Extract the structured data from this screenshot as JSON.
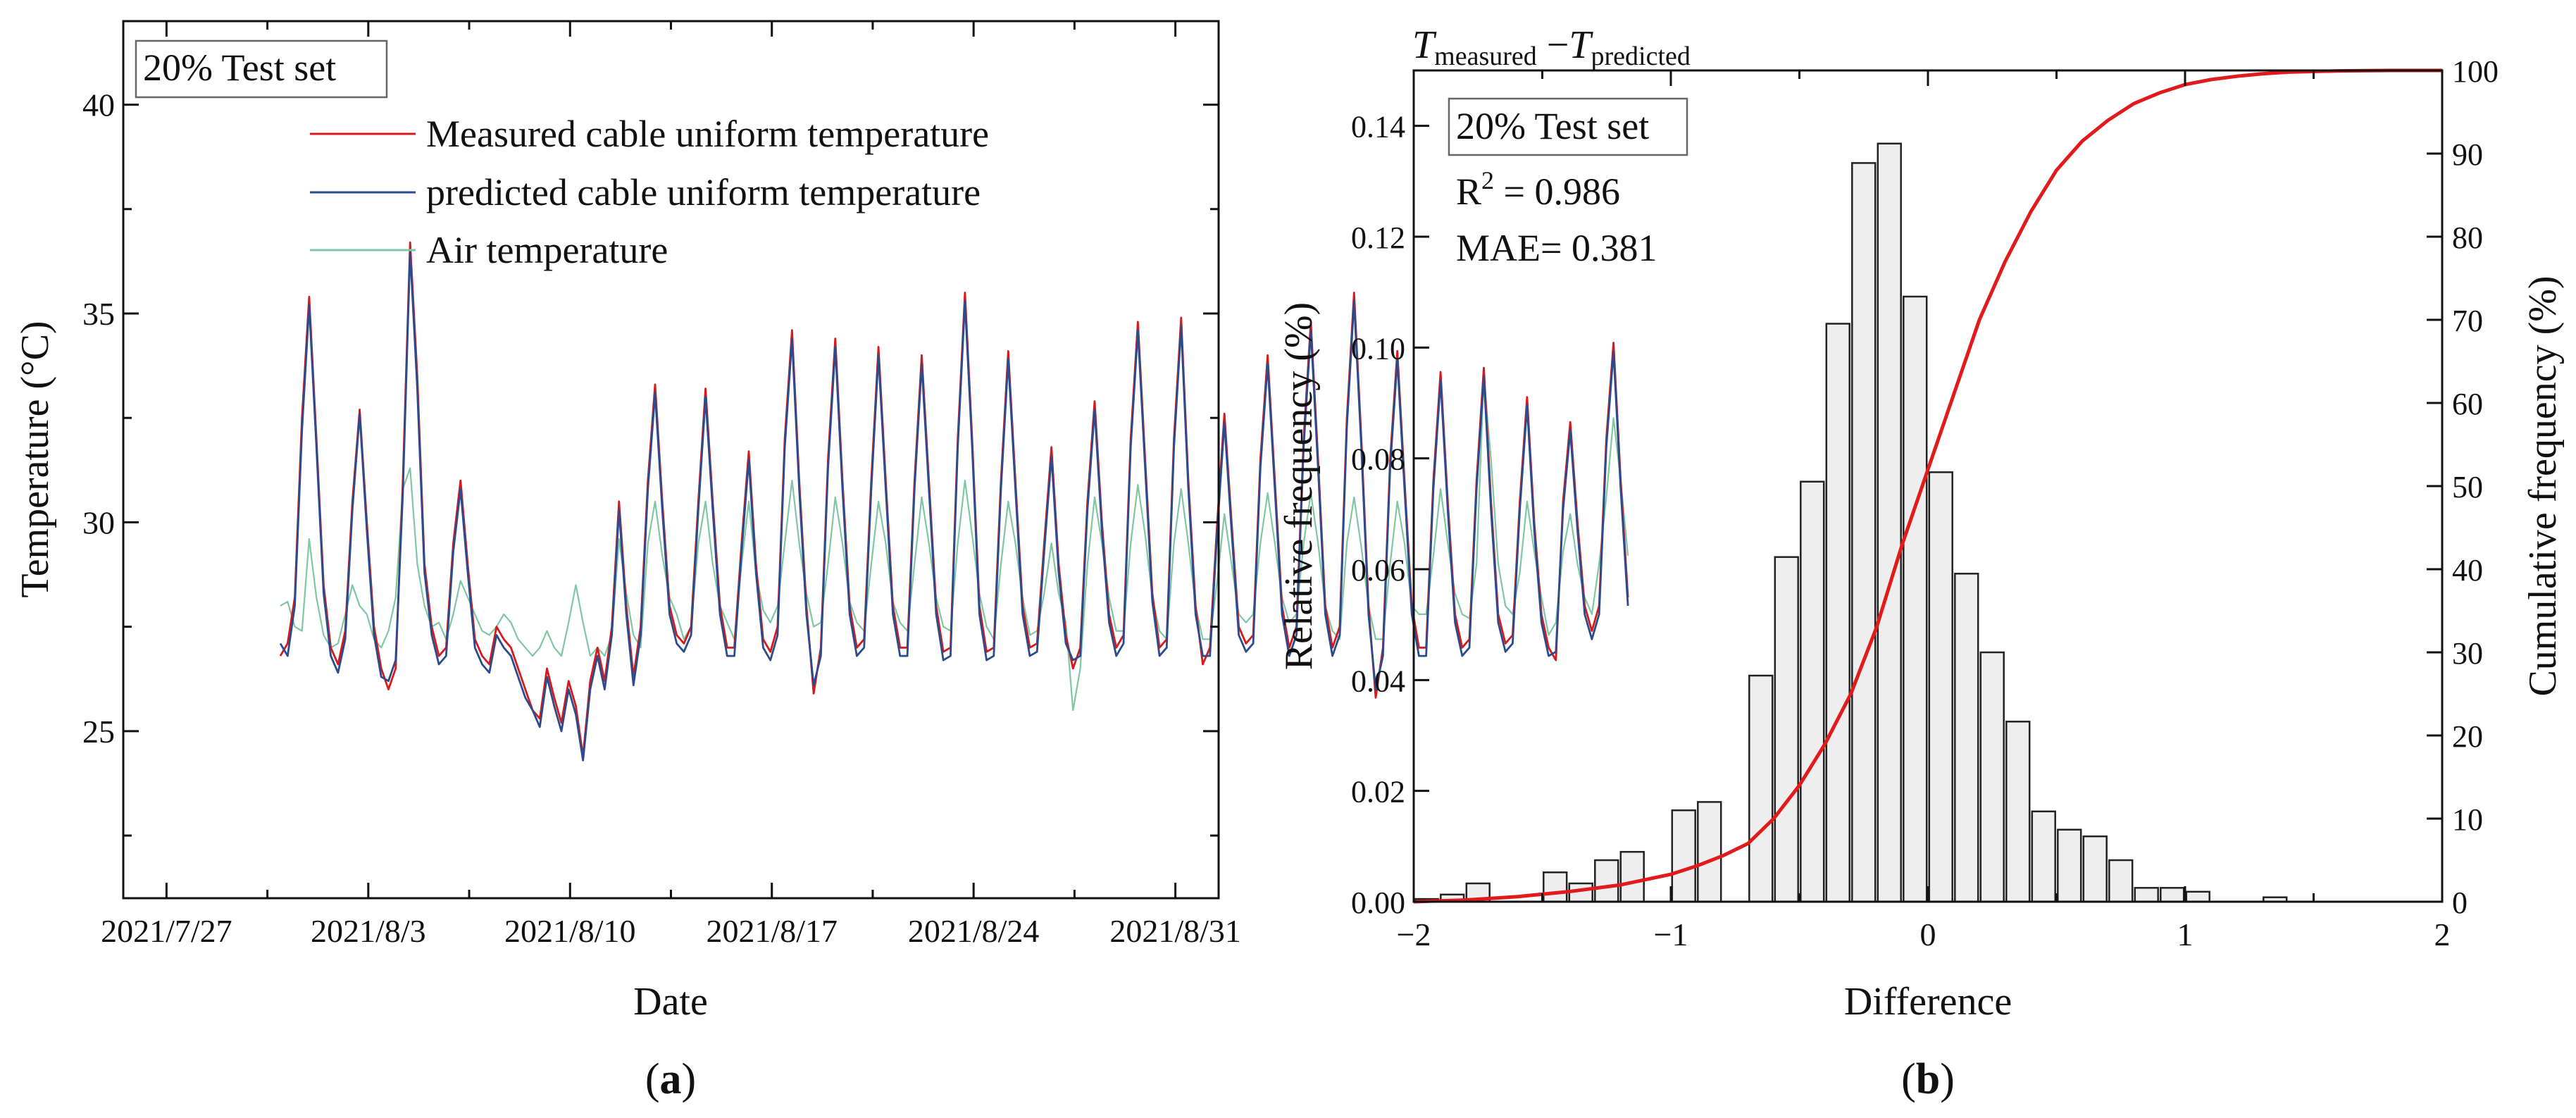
{
  "chart_data": [
    {
      "panel": "a",
      "type": "line",
      "panel_label": "(a)",
      "xlabel": "Date",
      "ylabel": "Temperature (°C)",
      "x_ticks": [
        "2021/7/27",
        "2021/8/3",
        "2021/8/10",
        "2021/8/17",
        "2021/8/24",
        "2021/8/31"
      ],
      "x_range_days": [
        -1.5,
        36.5
      ],
      "ylim": [
        21,
        42
      ],
      "y_ticks": [
        25,
        30,
        35,
        40
      ],
      "annotation": "20% Test set",
      "legend": [
        "Measured cable uniform temperature",
        "predicted cable uniform temperature",
        "Air temperature"
      ],
      "colors": {
        "measured": "#d7191c",
        "predicted": "#2b4b8c",
        "air": "#7fc6a4"
      },
      "x_start_day": 3.95,
      "x_step_day": 0.25,
      "series": [
        {
          "name": "Measured cable uniform temperature",
          "values": [
            26.8,
            27.1,
            28.2,
            32.5,
            35.4,
            32.0,
            28.5,
            27.0,
            26.6,
            27.4,
            30.5,
            32.7,
            30.0,
            27.5,
            26.5,
            26.0,
            26.5,
            31.0,
            36.7,
            33.5,
            29.0,
            27.5,
            26.8,
            27.0,
            29.5,
            31.0,
            29.0,
            27.2,
            26.8,
            26.6,
            27.5,
            27.2,
            27.0,
            26.5,
            26.0,
            25.5,
            25.3,
            26.5,
            25.8,
            25.2,
            26.2,
            25.6,
            24.4,
            26.2,
            27.0,
            26.2,
            27.5,
            30.5,
            28.0,
            26.3,
            27.5,
            31.0,
            33.3,
            30.5,
            28.0,
            27.3,
            27.1,
            27.5,
            30.5,
            33.2,
            30.5,
            28.0,
            27.0,
            27.0,
            29.5,
            31.7,
            29.0,
            27.2,
            26.9,
            27.5,
            32.0,
            34.6,
            31.0,
            28.0,
            25.9,
            27.0,
            31.5,
            34.4,
            31.0,
            28.0,
            27.0,
            27.2,
            31.0,
            34.2,
            31.0,
            28.0,
            27.0,
            27.0,
            31.0,
            34.0,
            31.0,
            28.0,
            26.9,
            27.0,
            32.0,
            35.5,
            32.0,
            28.0,
            26.9,
            27.0,
            31.0,
            34.1,
            31.0,
            28.0,
            27.0,
            27.1,
            29.5,
            31.8,
            29.0,
            27.3,
            26.5,
            27.0,
            30.5,
            32.9,
            30.0,
            27.8,
            27.0,
            27.3,
            32.0,
            34.8,
            31.5,
            28.3,
            27.0,
            27.2,
            32.0,
            34.9,
            31.0,
            28.0,
            26.6,
            27.0,
            30.0,
            32.6,
            30.0,
            27.5,
            27.1,
            27.3,
            31.5,
            34.0,
            31.0,
            28.0,
            27.0,
            27.5,
            32.0,
            34.8,
            31.5,
            28.0,
            27.0,
            27.5,
            32.5,
            35.5,
            32.0,
            28.0,
            25.8,
            27.0,
            31.5,
            34.1,
            31.0,
            28.0,
            27.0,
            27.0,
            31.0,
            33.6,
            30.5,
            27.8,
            27.0,
            27.2,
            31.0,
            33.7,
            30.5,
            27.8,
            27.1,
            27.3,
            30.5,
            33.0,
            30.0,
            27.8,
            27.0,
            26.7,
            30.5,
            32.4,
            30.0,
            28.0,
            27.4,
            28.0,
            32.0,
            34.3,
            31.0,
            28.2
          ]
        },
        {
          "name": "predicted cable uniform temperature",
          "values": [
            27.1,
            26.8,
            28.0,
            32.2,
            35.2,
            31.8,
            28.3,
            26.8,
            26.4,
            27.2,
            30.3,
            32.6,
            29.8,
            27.3,
            26.3,
            26.2,
            26.7,
            30.7,
            36.5,
            33.2,
            28.8,
            27.3,
            26.6,
            26.8,
            29.3,
            30.8,
            28.8,
            27.0,
            26.6,
            26.4,
            27.3,
            27.0,
            26.8,
            26.3,
            25.8,
            25.5,
            25.1,
            26.3,
            25.6,
            25.0,
            26.0,
            25.4,
            24.3,
            26.0,
            26.8,
            26.0,
            27.3,
            30.3,
            27.8,
            26.1,
            27.3,
            30.8,
            33.1,
            30.3,
            27.8,
            27.1,
            26.9,
            27.3,
            30.3,
            33.0,
            30.3,
            27.8,
            26.8,
            26.8,
            29.3,
            31.5,
            28.8,
            27.0,
            26.7,
            27.3,
            31.8,
            34.4,
            30.8,
            27.8,
            26.1,
            26.8,
            31.3,
            34.2,
            30.8,
            27.8,
            26.8,
            27.0,
            30.8,
            34.0,
            30.8,
            27.8,
            26.8,
            26.8,
            30.8,
            33.8,
            30.8,
            27.8,
            26.7,
            26.8,
            31.8,
            35.3,
            31.8,
            27.8,
            26.7,
            26.8,
            30.8,
            33.9,
            30.8,
            27.8,
            26.8,
            26.9,
            29.3,
            31.6,
            28.8,
            27.1,
            26.7,
            26.8,
            30.3,
            32.7,
            29.8,
            27.6,
            26.8,
            27.1,
            31.8,
            34.6,
            31.3,
            28.1,
            26.8,
            27.0,
            31.8,
            34.7,
            30.8,
            27.8,
            26.8,
            26.8,
            29.8,
            32.4,
            29.8,
            27.3,
            26.9,
            27.1,
            31.3,
            33.8,
            30.8,
            27.8,
            26.8,
            27.3,
            31.8,
            34.6,
            31.3,
            27.8,
            26.8,
            27.3,
            32.3,
            35.3,
            31.8,
            27.8,
            26.0,
            26.8,
            31.3,
            33.9,
            30.8,
            27.8,
            26.8,
            26.8,
            30.8,
            33.4,
            30.3,
            27.6,
            26.8,
            27.0,
            30.8,
            33.5,
            30.3,
            27.6,
            26.9,
            27.1,
            30.3,
            32.8,
            29.8,
            27.6,
            26.8,
            26.9,
            30.3,
            32.2,
            29.8,
            27.8,
            27.2,
            27.8,
            31.8,
            34.1,
            30.8,
            28.0
          ]
        },
        {
          "name": "Air temperature",
          "values": [
            28.0,
            28.1,
            27.5,
            27.4,
            29.6,
            28.2,
            27.3,
            27.0,
            27.1,
            27.8,
            28.5,
            28.0,
            27.8,
            27.2,
            27.0,
            27.4,
            28.2,
            30.8,
            31.3,
            29.0,
            28.0,
            27.5,
            27.6,
            27.2,
            27.8,
            28.6,
            28.2,
            27.8,
            27.4,
            27.3,
            27.5,
            27.8,
            27.6,
            27.2,
            27.0,
            26.8,
            27.0,
            27.4,
            27.0,
            26.8,
            27.6,
            28.5,
            27.6,
            26.8,
            27.0,
            26.8,
            27.3,
            29.6,
            28.3,
            27.3,
            27.0,
            29.5,
            30.5,
            29.2,
            28.2,
            27.8,
            27.2,
            27.5,
            29.5,
            30.5,
            29.0,
            28.0,
            27.6,
            27.2,
            29.0,
            30.5,
            28.8,
            27.9,
            27.6,
            28.0,
            29.5,
            31.0,
            29.5,
            28.3,
            27.5,
            27.6,
            29.0,
            30.6,
            29.5,
            28.1,
            27.6,
            27.4,
            29.0,
            30.5,
            29.5,
            28.1,
            27.6,
            27.4,
            29.0,
            30.6,
            29.5,
            28.2,
            27.5,
            27.4,
            29.5,
            31.0,
            29.7,
            28.3,
            27.5,
            27.2,
            29.0,
            30.5,
            29.5,
            28.2,
            27.3,
            27.4,
            28.3,
            29.5,
            28.3,
            27.6,
            25.5,
            26.5,
            29.0,
            30.6,
            29.5,
            28.2,
            27.4,
            27.4,
            29.5,
            30.9,
            29.7,
            28.2,
            27.4,
            27.2,
            29.5,
            30.8,
            29.5,
            28.0,
            27.2,
            27.2,
            28.6,
            30.2,
            29.0,
            27.8,
            27.6,
            27.8,
            29.5,
            30.7,
            29.5,
            28.2,
            27.6,
            27.8,
            29.5,
            30.7,
            29.5,
            28.0,
            27.4,
            27.2,
            29.5,
            30.6,
            29.4,
            28.0,
            27.2,
            27.2,
            29.0,
            30.5,
            29.5,
            28.0,
            27.8,
            27.8,
            29.2,
            30.8,
            29.5,
            28.3,
            27.8,
            27.7,
            29.0,
            33.5,
            31.5,
            29.0,
            28.0,
            27.8,
            28.8,
            30.5,
            29.3,
            28.2,
            27.3,
            27.6,
            29.3,
            30.2,
            29.0,
            28.2,
            27.8,
            29.0,
            30.6,
            32.5,
            31.0,
            29.2
          ]
        }
      ]
    },
    {
      "panel": "b",
      "type": "bar",
      "panel_label": "(b)",
      "title": "T_measured − T_predicted",
      "title_parts": {
        "t1": "T",
        "s1": "measured",
        "op": " −",
        "t2": "T",
        "s2": "predicted"
      },
      "xlabel": "Difference",
      "ylabel": "Relative frequency (%)",
      "y2label": "Cumulative frequency (%)",
      "xlim": [
        -2,
        2
      ],
      "ylim": [
        0,
        0.15
      ],
      "y2lim": [
        0,
        100
      ],
      "x_ticks": [
        "−2",
        "−1",
        "0",
        "1",
        "2"
      ],
      "y_ticks": [
        "0.00",
        "0.02",
        "0.04",
        "0.06",
        "0.08",
        "0.10",
        "0.12",
        "0.14"
      ],
      "y2_ticks": [
        "0",
        "10",
        "20",
        "30",
        "40",
        "50",
        "60",
        "70",
        "80",
        "90",
        "100"
      ],
      "annotation": "20% Test set",
      "r2_label": "R",
      "r2_exp": "2",
      "r2_value": " = 0.986",
      "mae_label": "MAE= 0.381",
      "bar_width": 0.09,
      "bar_centers": [
        -1.95,
        -1.85,
        -1.75,
        -1.65,
        -1.55,
        -1.45,
        -1.35,
        -1.25,
        -1.15,
        -1.05,
        -0.95,
        -0.85,
        -0.75,
        -0.65,
        -0.55,
        -0.45,
        -0.35,
        -0.25,
        -0.15,
        -0.05,
        0.05,
        0.15,
        0.25,
        0.35,
        0.45,
        0.55,
        0.65,
        0.75,
        0.85,
        0.95,
        1.05,
        1.15,
        1.25,
        1.35,
        1.45,
        1.55,
        1.65,
        1.75,
        1.85,
        1.95
      ],
      "values": [
        0.0005,
        0.0013,
        0.0033,
        0.0,
        0.0,
        0.0053,
        0.0033,
        0.0075,
        0.009,
        0.0,
        0.0165,
        0.018,
        0.0,
        0.0408,
        0.0622,
        0.0758,
        0.1043,
        0.1333,
        0.1368,
        0.1092,
        0.0775,
        0.0592,
        0.045,
        0.0325,
        0.0163,
        0.013,
        0.0118,
        0.0075,
        0.0025,
        0.0025,
        0.0018,
        0.0,
        0.0,
        0.0008,
        0.0,
        0.0,
        0.0,
        0.0,
        0.0,
        0.0
      ],
      "cumulative": {
        "x": [
          -2.0,
          -1.8,
          -1.6,
          -1.4,
          -1.2,
          -1.0,
          -0.9,
          -0.8,
          -0.7,
          -0.6,
          -0.5,
          -0.4,
          -0.3,
          -0.2,
          -0.1,
          0.0,
          0.1,
          0.2,
          0.3,
          0.4,
          0.5,
          0.6,
          0.7,
          0.8,
          0.9,
          1.0,
          1.1,
          1.2,
          1.3,
          1.4,
          1.6,
          1.8,
          2.0
        ],
        "y": [
          0.0,
          0.2,
          0.6,
          1.2,
          2.0,
          3.3,
          4.3,
          5.5,
          7.0,
          10.0,
          14.0,
          19.0,
          25.0,
          33.0,
          43.0,
          52.0,
          61.0,
          70.0,
          77.0,
          83.0,
          88.0,
          91.5,
          94.0,
          96.0,
          97.3,
          98.3,
          98.9,
          99.3,
          99.6,
          99.8,
          99.95,
          100.0,
          100.0
        ]
      },
      "colors": {
        "bar_fill": "#eeeeee",
        "bar_stroke": "#222222",
        "cumulative": "#e31a1c"
      }
    }
  ]
}
